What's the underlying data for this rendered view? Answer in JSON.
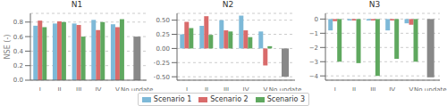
{
  "chart_data": [
    {
      "type": "bar",
      "title": "N1",
      "ylabel": "NSE (-)",
      "categories": [
        "I",
        "II",
        "III",
        "IV",
        "V",
        "No update"
      ],
      "series": [
        {
          "name": "Scenario 1",
          "color": "#7db9d8",
          "values": [
            0.75,
            0.78,
            0.78,
            0.83,
            0.77,
            null
          ]
        },
        {
          "name": "Scenario 2",
          "color": "#d96b6b",
          "values": [
            0.82,
            0.81,
            0.76,
            0.69,
            0.73,
            null
          ]
        },
        {
          "name": "Scenario 3",
          "color": "#5fa85f",
          "values": [
            0.73,
            0.8,
            0.6,
            0.8,
            0.84,
            null
          ]
        },
        {
          "color": "#888888",
          "values": [
            null,
            null,
            null,
            null,
            null,
            0.6
          ]
        }
      ],
      "ylim": [
        0.0,
        0.92
      ],
      "yticks": [
        {
          "value": 0.0,
          "label": "0.0"
        },
        0.2,
        0.4,
        0.6,
        0.8
      ],
      "grid": true,
      "legend": "bottom"
    },
    {
      "type": "bar",
      "title": "N2",
      "categories": [
        "I",
        "II",
        "III",
        "IV",
        "V",
        "No update"
      ],
      "series": [
        {
          "name": "Scenario 1",
          "color": "#7db9d8",
          "values": [
            0.25,
            0.4,
            0.5,
            0.58,
            0.3,
            null
          ]
        },
        {
          "name": "Scenario 2",
          "color": "#d96b6b",
          "values": [
            0.47,
            0.57,
            0.32,
            0.32,
            -0.3,
            null
          ]
        },
        {
          "name": "Scenario 3",
          "color": "#5fa85f",
          "values": [
            0.36,
            0.24,
            0.3,
            0.2,
            0.04,
            null
          ]
        },
        {
          "color": "#888888",
          "values": [
            null,
            null,
            null,
            null,
            null,
            -0.5
          ]
        }
      ],
      "ylim": [
        -0.56,
        0.62
      ],
      "yticks": [
        {
          "value": -0.5,
          "label": "−0.50"
        },
        {
          "value": -0.25,
          "label": "−0.25"
        },
        {
          "value": 0.0,
          "label": "0.00"
        },
        0.25,
        {
          "value": 0.5,
          "label": "0.50"
        }
      ],
      "grid": true,
      "legend": "bottom"
    },
    {
      "type": "bar",
      "title": "N3",
      "categories": [
        "I",
        "II",
        "III",
        "IV",
        "V",
        "No update"
      ],
      "series": [
        {
          "name": "Scenario 1",
          "color": "#7db9d8",
          "values": [
            -0.8,
            -0.1,
            -0.1,
            -0.8,
            -0.3,
            null
          ]
        },
        {
          "name": "Scenario 2",
          "color": "#d96b6b",
          "values": [
            -0.15,
            -0.1,
            -0.1,
            -0.1,
            -0.4,
            null
          ]
        },
        {
          "name": "Scenario 3",
          "color": "#5fa85f",
          "values": [
            -3.0,
            -3.1,
            -4.0,
            -2.8,
            -3.0,
            null
          ]
        },
        {
          "color": "#888888",
          "values": [
            null,
            null,
            null,
            null,
            null,
            -4.1
          ]
        }
      ],
      "ylim": [
        -4.3,
        0.4
      ],
      "yticks": [
        {
          "value": -4,
          "label": "−4"
        },
        {
          "value": -3,
          "label": "−3"
        },
        {
          "value": -2,
          "label": "−2"
        },
        {
          "value": -1,
          "label": "−1"
        },
        0
      ],
      "grid": true,
      "legend": "bottom"
    }
  ]
}
